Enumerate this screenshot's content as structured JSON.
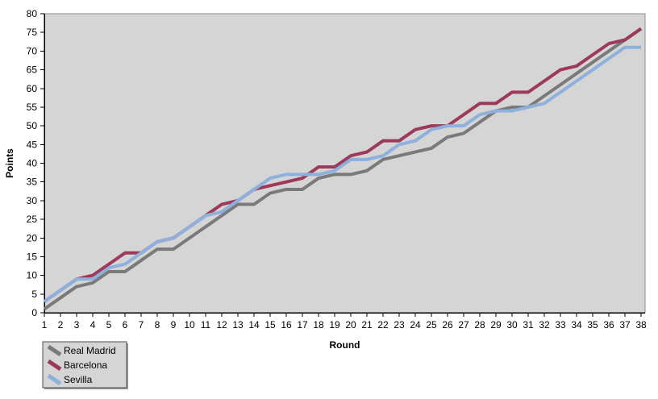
{
  "chart_data": {
    "type": "line",
    "title": "",
    "xlabel": "Round",
    "ylabel": "Points",
    "x": [
      1,
      2,
      3,
      4,
      5,
      6,
      7,
      8,
      9,
      10,
      11,
      12,
      13,
      14,
      15,
      16,
      17,
      18,
      19,
      20,
      21,
      22,
      23,
      24,
      25,
      26,
      27,
      28,
      29,
      30,
      31,
      32,
      33,
      34,
      35,
      36,
      37,
      38
    ],
    "series": [
      {
        "name": "Real Madrid",
        "color": "#7A7A7A",
        "values": [
          1,
          4,
          7,
          8,
          11,
          11,
          14,
          17,
          17,
          20,
          23,
          26,
          29,
          29,
          32,
          33,
          33,
          36,
          37,
          37,
          38,
          41,
          42,
          43,
          44,
          47,
          48,
          51,
          54,
          55,
          55,
          58,
          61,
          64,
          67,
          70,
          73,
          76
        ]
      },
      {
        "name": "Barcelona",
        "color": "#9C3A59",
        "values": [
          3,
          6,
          9,
          10,
          13,
          16,
          16,
          19,
          20,
          23,
          26,
          29,
          30,
          33,
          34,
          35,
          36,
          39,
          39,
          42,
          43,
          46,
          46,
          49,
          50,
          50,
          53,
          56,
          56,
          59,
          59,
          62,
          65,
          66,
          69,
          72,
          73,
          76
        ]
      },
      {
        "name": "Sevilla",
        "color": "#8DB0DC",
        "values": [
          3,
          6,
          9,
          9,
          12,
          13,
          16,
          19,
          20,
          23,
          26,
          27,
          30,
          33,
          36,
          37,
          37,
          37,
          38,
          41,
          41,
          42,
          45,
          46,
          49,
          50,
          50,
          53,
          54,
          54,
          55,
          56,
          59,
          62,
          65,
          68,
          71,
          71
        ]
      }
    ],
    "ylim": [
      0,
      80
    ],
    "ytick_step": 5,
    "grid": false,
    "legend_position": "bottom-left",
    "plot_bg": "#D5D5D5",
    "plot_border": "#8C8C8C",
    "axis_color": "#000000"
  }
}
